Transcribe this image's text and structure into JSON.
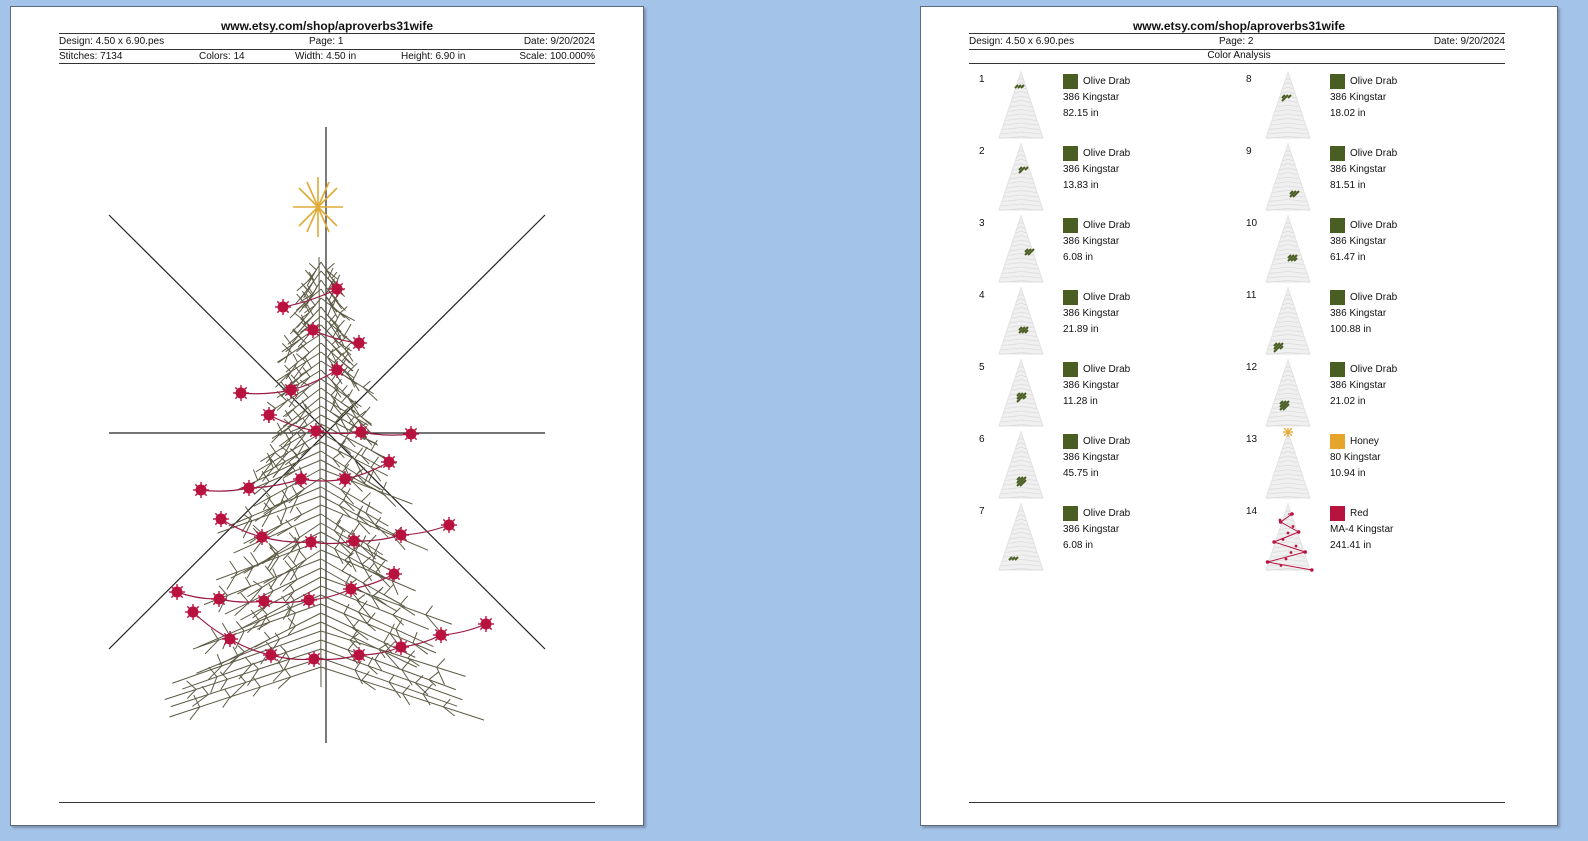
{
  "page1": {
    "url": "www.etsy.com/shop/aproverbs31wife",
    "design": "Design: 4.50 x 6.90.pes",
    "page": "Page: 1",
    "date": "Date: 9/20/2024",
    "stitches": "Stitches: 7134",
    "colors": "Colors: 14",
    "width": "Width: 4.50 in",
    "height": "Height: 6.90 in",
    "scale": "Scale: 100.000%"
  },
  "page2": {
    "url": "www.etsy.com/shop/aproverbs31wife",
    "design": "Design: 4.50 x 6.90.pes",
    "page": "Page: 2",
    "date": "Date: 9/20/2024",
    "section_title": "Color Analysis",
    "entries": [
      {
        "num": "1",
        "name": "Olive Drab",
        "thread": "386 Kingstar",
        "length": "82.15 in",
        "color": "#4a5e23"
      },
      {
        "num": "2",
        "name": "Olive Drab",
        "thread": "386 Kingstar",
        "length": "13.83 in",
        "color": "#4a5e23"
      },
      {
        "num": "3",
        "name": "Olive Drab",
        "thread": "386 Kingstar",
        "length": "6.08 in",
        "color": "#4a5e23"
      },
      {
        "num": "4",
        "name": "Olive Drab",
        "thread": "386 Kingstar",
        "length": "21.89 in",
        "color": "#4a5e23"
      },
      {
        "num": "5",
        "name": "Olive Drab",
        "thread": "386 Kingstar",
        "length": "11.28 in",
        "color": "#4a5e23"
      },
      {
        "num": "6",
        "name": "Olive Drab",
        "thread": "386 Kingstar",
        "length": "45.75 in",
        "color": "#4a5e23"
      },
      {
        "num": "7",
        "name": "Olive Drab",
        "thread": "386 Kingstar",
        "length": "6.08 in",
        "color": "#4a5e23"
      },
      {
        "num": "8",
        "name": "Olive Drab",
        "thread": "386 Kingstar",
        "length": "18.02 in",
        "color": "#4a5e23"
      },
      {
        "num": "9",
        "name": "Olive Drab",
        "thread": "386 Kingstar",
        "length": "81.51 in",
        "color": "#4a5e23"
      },
      {
        "num": "10",
        "name": "Olive Drab",
        "thread": "386 Kingstar",
        "length": "61.47 in",
        "color": "#4a5e23"
      },
      {
        "num": "11",
        "name": "Olive Drab",
        "thread": "386 Kingstar",
        "length": "100.88 in",
        "color": "#4a5e23"
      },
      {
        "num": "12",
        "name": "Olive Drab",
        "thread": "386 Kingstar",
        "length": "21.02 in",
        "color": "#4a5e23"
      },
      {
        "num": "13",
        "name": "Honey",
        "thread": "80 Kingstar",
        "length": "10.94 in",
        "color": "#e5a52a"
      },
      {
        "num": "14",
        "name": "Red",
        "thread": "MA-4 Kingstar",
        "length": "241.41 in",
        "color": "#b8123f"
      }
    ]
  },
  "colors": {
    "background": "#a4c3e9",
    "olive_drab": "#4a5e23",
    "honey": "#e5a52a",
    "red": "#b8123f",
    "branch": "#5d5a44"
  }
}
